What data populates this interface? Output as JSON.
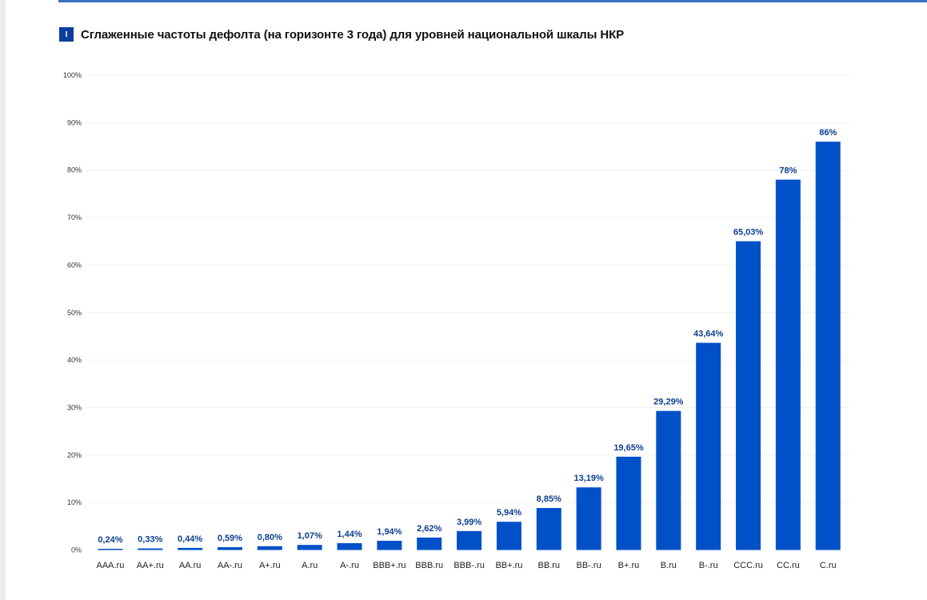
{
  "chart_data": {
    "type": "bar",
    "title": "Сглаженные частоты дефолта (на горизонте 3 года) для уровней национальной шкалы НКР",
    "title_marker": "I",
    "xlabel": "",
    "ylabel": "",
    "ylim": [
      0,
      100
    ],
    "yticks": [
      "0%",
      "10%",
      "20%",
      "30%",
      "40%",
      "50%",
      "60%",
      "70%",
      "80%",
      "90%",
      "100%"
    ],
    "grid": true,
    "legend": "none",
    "bar_color": "#0050c8",
    "categories": [
      "AAA.ru",
      "AA+.ru",
      "AA.ru",
      "AA-.ru",
      "A+.ru",
      "A.ru",
      "A-.ru",
      "BBB+.ru",
      "BBB.ru",
      "BBB-.ru",
      "BB+.ru",
      "BB.ru",
      "BB-.ru",
      "B+.ru",
      "B.ru",
      "B-.ru",
      "CCC.ru",
      "CC.ru",
      "C.ru"
    ],
    "values": [
      0.24,
      0.33,
      0.44,
      0.59,
      0.8,
      1.07,
      1.44,
      1.94,
      2.62,
      3.99,
      5.94,
      8.85,
      13.19,
      19.65,
      29.29,
      43.64,
      65.03,
      78,
      86
    ],
    "data_labels": [
      "0,24%",
      "0,33%",
      "0,44%",
      "0,59%",
      "0,80%",
      "1,07%",
      "1,44%",
      "1,94%",
      "2,62%",
      "3,99%",
      "5,94%",
      "8,85%",
      "13,19%",
      "19,65%",
      "29,29%",
      "43,64%",
      "65,03%",
      "78%",
      "86%"
    ]
  }
}
